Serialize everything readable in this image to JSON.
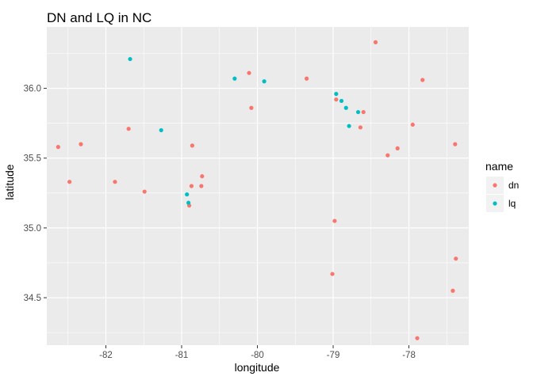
{
  "chart_data": {
    "type": "scatter",
    "title": "DN and LQ in NC",
    "xlabel": "longitude",
    "ylabel": "latitude",
    "xlim": [
      -82.78,
      -77.21
    ],
    "ylim": [
      34.16,
      36.44
    ],
    "x_ticks": [
      -82,
      -81,
      -80,
      -79,
      -78
    ],
    "x_tick_labels": [
      "-82",
      "-81",
      "-80",
      "-79",
      "-78"
    ],
    "y_ticks": [
      34.5,
      35.0,
      35.5,
      36.0
    ],
    "y_tick_labels": [
      "34.5",
      "35.0",
      "35.5",
      "36.0"
    ],
    "grid": true,
    "legend": {
      "title": "name",
      "placement": "right",
      "entries": [
        "dn",
        "lq"
      ]
    },
    "series": [
      {
        "name": "dn",
        "color": "#F8766D",
        "points": [
          {
            "x": -82.63,
            "y": 35.58
          },
          {
            "x": -82.48,
            "y": 35.33
          },
          {
            "x": -82.33,
            "y": 35.6
          },
          {
            "x": -81.88,
            "y": 35.33
          },
          {
            "x": -81.7,
            "y": 35.71
          },
          {
            "x": -81.49,
            "y": 35.26
          },
          {
            "x": -80.9,
            "y": 35.16
          },
          {
            "x": -80.87,
            "y": 35.3
          },
          {
            "x": -80.86,
            "y": 35.59
          },
          {
            "x": -80.74,
            "y": 35.3
          },
          {
            "x": -80.73,
            "y": 35.37
          },
          {
            "x": -80.11,
            "y": 36.11
          },
          {
            "x": -80.08,
            "y": 35.86
          },
          {
            "x": -79.35,
            "y": 36.07
          },
          {
            "x": -79.01,
            "y": 34.67
          },
          {
            "x": -78.98,
            "y": 35.05
          },
          {
            "x": -78.96,
            "y": 35.92
          },
          {
            "x": -78.64,
            "y": 35.72
          },
          {
            "x": -78.6,
            "y": 35.83
          },
          {
            "x": -78.44,
            "y": 36.33
          },
          {
            "x": -78.28,
            "y": 35.52
          },
          {
            "x": -78.15,
            "y": 35.57
          },
          {
            "x": -77.95,
            "y": 35.74
          },
          {
            "x": -77.89,
            "y": 34.21
          },
          {
            "x": -77.82,
            "y": 36.06
          },
          {
            "x": -77.42,
            "y": 34.55
          },
          {
            "x": -77.39,
            "y": 35.6
          },
          {
            "x": -77.38,
            "y": 34.78
          }
        ]
      },
      {
        "name": "lq",
        "color": "#00BFC4",
        "points": [
          {
            "x": -81.68,
            "y": 36.21
          },
          {
            "x": -81.27,
            "y": 35.7
          },
          {
            "x": -80.93,
            "y": 35.24
          },
          {
            "x": -80.91,
            "y": 35.18
          },
          {
            "x": -80.3,
            "y": 36.07
          },
          {
            "x": -79.91,
            "y": 36.05
          },
          {
            "x": -78.96,
            "y": 35.96
          },
          {
            "x": -78.89,
            "y": 35.91
          },
          {
            "x": -78.83,
            "y": 35.86
          },
          {
            "x": -78.79,
            "y": 35.73
          },
          {
            "x": -78.67,
            "y": 35.83
          }
        ]
      }
    ]
  }
}
